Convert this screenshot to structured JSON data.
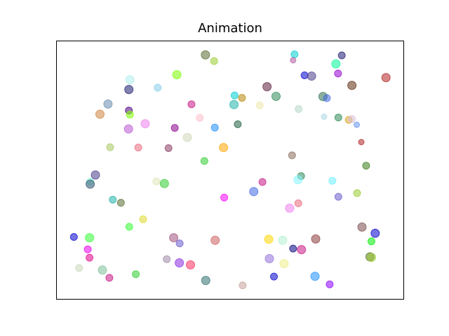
{
  "chart_data": {
    "type": "scatter",
    "title": "Animation",
    "xlabel": "",
    "ylabel": "",
    "xlim": [
      0,
      100
    ],
    "ylim": [
      0,
      100
    ],
    "grid": false,
    "ticks_visible": false,
    "alpha": 0.55,
    "points": [
      {
        "x": 42.9,
        "y": 94.5,
        "size": 6,
        "color": "#556b2f"
      },
      {
        "x": 45.4,
        "y": 92.1,
        "size": 5,
        "color": "#9acd32"
      },
      {
        "x": 68.5,
        "y": 94.7,
        "size": 5,
        "color": "#00ced1"
      },
      {
        "x": 82.1,
        "y": 94.3,
        "size": 5,
        "color": "#191970"
      },
      {
        "x": 68.1,
        "y": 92.4,
        "size": 4,
        "color": "#b05aa0"
      },
      {
        "x": 80.4,
        "y": 91.0,
        "size": 6,
        "color": "#00fa9a"
      },
      {
        "x": 34.7,
        "y": 86.8,
        "size": 6,
        "color": "#7cfc00"
      },
      {
        "x": 71.4,
        "y": 86.6,
        "size": 5,
        "color": "#0000cd"
      },
      {
        "x": 73.4,
        "y": 86.3,
        "size": 6,
        "color": "#483d8b"
      },
      {
        "x": 81.0,
        "y": 87.3,
        "size": 5,
        "color": "#9400d3"
      },
      {
        "x": 94.8,
        "y": 85.7,
        "size": 6,
        "color": "#b22222"
      },
      {
        "x": 21.2,
        "y": 84.9,
        "size": 6,
        "color": "#afeeee"
      },
      {
        "x": 20.9,
        "y": 81.1,
        "size": 6,
        "color": "#191970"
      },
      {
        "x": 29.2,
        "y": 81.8,
        "size": 5,
        "color": "#87ceeb"
      },
      {
        "x": 60.6,
        "y": 82.2,
        "size": 6,
        "color": "#5d1f3f"
      },
      {
        "x": 85.0,
        "y": 82.7,
        "size": 6,
        "color": "#5d2e0f"
      },
      {
        "x": 51.3,
        "y": 78.8,
        "size": 5,
        "color": "#00ced1"
      },
      {
        "x": 53.4,
        "y": 77.9,
        "size": 5,
        "color": "#b8860b"
      },
      {
        "x": 63.2,
        "y": 78.5,
        "size": 6,
        "color": "#2e8b57"
      },
      {
        "x": 76.7,
        "y": 78.4,
        "size": 6,
        "color": "#2f6f4f"
      },
      {
        "x": 77.8,
        "y": 77.8,
        "size": 5,
        "color": "#4169e1"
      },
      {
        "x": 14.9,
        "y": 75.5,
        "size": 6,
        "color": "#6a8caf"
      },
      {
        "x": 12.6,
        "y": 71.6,
        "size": 6,
        "color": "#cd853f"
      },
      {
        "x": 20.9,
        "y": 73.0,
        "size": 5,
        "color": "#4b0082"
      },
      {
        "x": 21.2,
        "y": 71.4,
        "size": 5,
        "color": "#7fff00"
      },
      {
        "x": 38.9,
        "y": 75.4,
        "size": 5,
        "color": "#c71585"
      },
      {
        "x": 51.1,
        "y": 75.3,
        "size": 6,
        "color": "#20b2aa"
      },
      {
        "x": 58.5,
        "y": 75.0,
        "size": 5,
        "color": "#eee8aa"
      },
      {
        "x": 69.7,
        "y": 73.6,
        "size": 5,
        "color": "#b4d8c8"
      },
      {
        "x": 41.3,
        "y": 70.2,
        "size": 5,
        "color": "#ffc0cb"
      },
      {
        "x": 77.0,
        "y": 70.6,
        "size": 4,
        "color": "#add8e6"
      },
      {
        "x": 81.1,
        "y": 70.3,
        "size": 5,
        "color": "#2e8b57"
      },
      {
        "x": 84.1,
        "y": 69.4,
        "size": 5,
        "color": "#daa520"
      },
      {
        "x": 85.0,
        "y": 69.7,
        "size": 5,
        "color": "#d8bfd8"
      },
      {
        "x": 86.4,
        "y": 67.5,
        "size": 4,
        "color": "#6495ed"
      },
      {
        "x": 25.6,
        "y": 67.9,
        "size": 6,
        "color": "#ee82ee"
      },
      {
        "x": 20.8,
        "y": 65.9,
        "size": 6,
        "color": "#ba55d3"
      },
      {
        "x": 34.1,
        "y": 66.3,
        "size": 5,
        "color": "#8b008b"
      },
      {
        "x": 45.6,
        "y": 66.4,
        "size": 5,
        "color": "#1e90ff"
      },
      {
        "x": 52.2,
        "y": 67.7,
        "size": 5,
        "color": "#1d5f3f"
      },
      {
        "x": 37.7,
        "y": 62.6,
        "size": 6,
        "color": "#cfd8b8"
      },
      {
        "x": 48.1,
        "y": 58.7,
        "size": 6,
        "color": "#ffa500"
      },
      {
        "x": 15.5,
        "y": 58.8,
        "size": 5,
        "color": "#a8c860"
      },
      {
        "x": 23.6,
        "y": 58.7,
        "size": 5,
        "color": "#e9697d"
      },
      {
        "x": 32.3,
        "y": 58.5,
        "size": 5,
        "color": "#8b3a62"
      },
      {
        "x": 87.7,
        "y": 60.8,
        "size": 4,
        "color": "#b22222"
      },
      {
        "x": 42.6,
        "y": 53.5,
        "size": 5,
        "color": "#32cd32"
      },
      {
        "x": 67.8,
        "y": 55.7,
        "size": 5,
        "color": "#8b6c5c"
      },
      {
        "x": 89.1,
        "y": 51.7,
        "size": 5,
        "color": "#3a7d1a"
      },
      {
        "x": 11.3,
        "y": 48.1,
        "size": 6,
        "color": "#483d8b"
      },
      {
        "x": 9.8,
        "y": 45.5,
        "size": 5,
        "color": "#7fffd4"
      },
      {
        "x": 9.8,
        "y": 44.6,
        "size": 6,
        "color": "#2f4f6f"
      },
      {
        "x": 28.8,
        "y": 45.6,
        "size": 5,
        "color": "#dfe8b8"
      },
      {
        "x": 31.1,
        "y": 44.8,
        "size": 6,
        "color": "#32cd32"
      },
      {
        "x": 70.4,
        "y": 47.7,
        "size": 5,
        "color": "#2e8b57"
      },
      {
        "x": 69.5,
        "y": 46.3,
        "size": 6,
        "color": "#87f6ff"
      },
      {
        "x": 79.4,
        "y": 45.9,
        "size": 5,
        "color": "#6ff0ff"
      },
      {
        "x": 59.3,
        "y": 45.4,
        "size": 5,
        "color": "#c71585"
      },
      {
        "x": 56.8,
        "y": 41.7,
        "size": 6,
        "color": "#4169e1"
      },
      {
        "x": 48.3,
        "y": 39.4,
        "size": 5,
        "color": "#ff00ff"
      },
      {
        "x": 16.3,
        "y": 38.6,
        "size": 5,
        "color": "#20b2aa"
      },
      {
        "x": 18.6,
        "y": 37.4,
        "size": 5,
        "color": "#556b2f"
      },
      {
        "x": 67.1,
        "y": 35.3,
        "size": 6,
        "color": "#ee82ee"
      },
      {
        "x": 69.6,
        "y": 37.2,
        "size": 5,
        "color": "#e9697d"
      },
      {
        "x": 81.1,
        "y": 39.7,
        "size": 5,
        "color": "#6a5acd"
      },
      {
        "x": 86.5,
        "y": 41.1,
        "size": 5,
        "color": "#9acd32"
      },
      {
        "x": 21.0,
        "y": 28.1,
        "size": 5,
        "color": "#32ff32"
      },
      {
        "x": 25.0,
        "y": 31.0,
        "size": 5,
        "color": "#dfd830"
      },
      {
        "x": 87.9,
        "y": 28.0,
        "size": 6,
        "color": "#7a4a4a"
      },
      {
        "x": 5.1,
        "y": 24.2,
        "size": 5,
        "color": "#0000cd"
      },
      {
        "x": 9.6,
        "y": 23.9,
        "size": 6,
        "color": "#32ff32"
      },
      {
        "x": 33.8,
        "y": 23.9,
        "size": 6,
        "color": "#a0527d"
      },
      {
        "x": 35.5,
        "y": 21.7,
        "size": 5,
        "color": "#6a5acd"
      },
      {
        "x": 45.7,
        "y": 22.9,
        "size": 6,
        "color": "#cd5c5c"
      },
      {
        "x": 61.1,
        "y": 23.3,
        "size": 6,
        "color": "#ffd700"
      },
      {
        "x": 65.1,
        "y": 22.9,
        "size": 6,
        "color": "#b4f0d0"
      },
      {
        "x": 74.6,
        "y": 23.4,
        "size": 6,
        "color": "#8b3a3a"
      },
      {
        "x": 91.7,
        "y": 25.6,
        "size": 6,
        "color": "#0000cd"
      },
      {
        "x": 90.6,
        "y": 22.5,
        "size": 5,
        "color": "#00ee00"
      },
      {
        "x": 9.1,
        "y": 19.4,
        "size": 5,
        "color": "#ee00ee"
      },
      {
        "x": 9.6,
        "y": 16.2,
        "size": 5,
        "color": "#e0008a"
      },
      {
        "x": 68.1,
        "y": 19.7,
        "size": 5,
        "color": "#000080"
      },
      {
        "x": 70.5,
        "y": 19.3,
        "size": 6,
        "color": "#c71585"
      },
      {
        "x": 90.2,
        "y": 16.5,
        "size": 6,
        "color": "#556b2f"
      },
      {
        "x": 90.6,
        "y": 16.3,
        "size": 6,
        "color": "#9acd32"
      },
      {
        "x": 61.3,
        "y": 15.8,
        "size": 6,
        "color": "#9370db"
      },
      {
        "x": 65.5,
        "y": 13.9,
        "size": 6,
        "color": "#eeee88"
      },
      {
        "x": 6.6,
        "y": 12.2,
        "size": 5,
        "color": "#c8d8b8"
      },
      {
        "x": 13.3,
        "y": 11.4,
        "size": 6,
        "color": "#7ec098"
      },
      {
        "x": 15.3,
        "y": 8.4,
        "size": 5,
        "color": "#c71585"
      },
      {
        "x": 22.9,
        "y": 9.8,
        "size": 5,
        "color": "#32cd32"
      },
      {
        "x": 31.8,
        "y": 15.6,
        "size": 5,
        "color": "#a08aa8"
      },
      {
        "x": 35.4,
        "y": 14.2,
        "size": 6,
        "color": "#8a2be2"
      },
      {
        "x": 38.6,
        "y": 13.4,
        "size": 6,
        "color": "#ff3060"
      },
      {
        "x": 43.0,
        "y": 7.4,
        "size": 6,
        "color": "#2f6f6f"
      },
      {
        "x": 53.6,
        "y": 5.5,
        "size": 5,
        "color": "#c8a098"
      },
      {
        "x": 62.6,
        "y": 8.9,
        "size": 5,
        "color": "#0000cd"
      },
      {
        "x": 74.4,
        "y": 9.0,
        "size": 6,
        "color": "#1e90ff"
      },
      {
        "x": 78.6,
        "y": 5.9,
        "size": 5,
        "color": "#8b00ff"
      }
    ]
  }
}
